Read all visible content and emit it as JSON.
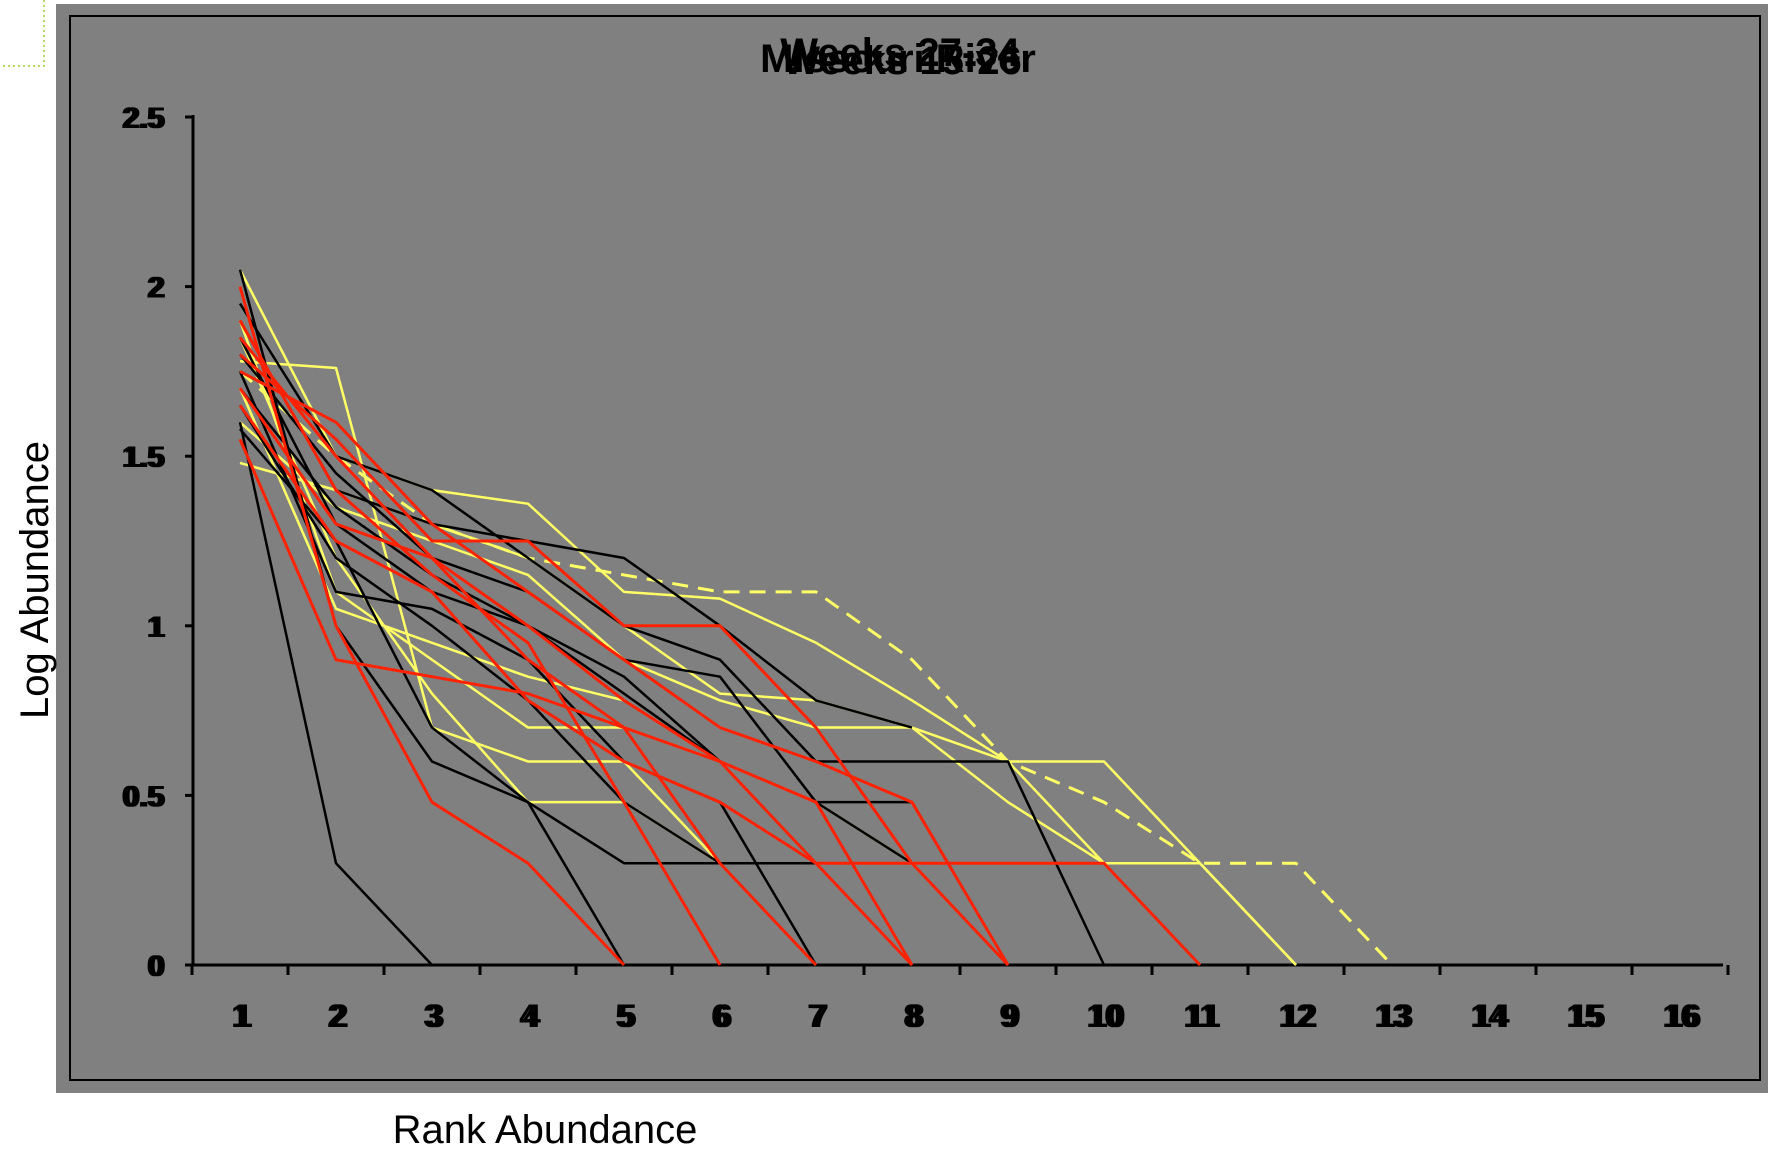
{
  "chart_data": {
    "type": "line",
    "title": "Weeks 27-34",
    "title_overlapping": [
      "Weeks 15-26",
      "Missouri River"
    ],
    "xlabel": "Rank Abundance",
    "ylabel": "Log Abundance",
    "x_ticks": [
      "1",
      "2",
      "3",
      "4",
      "5",
      "6",
      "7",
      "8",
      "9",
      "10",
      "11",
      "12",
      "13",
      "14",
      "15",
      "16"
    ],
    "y_ticks": [
      "0",
      "0.5",
      "1",
      "1.5",
      "2",
      "2.5"
    ],
    "ylim": [
      0,
      2.5
    ],
    "xlim": [
      1,
      16
    ],
    "grid": false,
    "legend": "none",
    "background_color": "#808080",
    "series": [
      {
        "color": "#000000",
        "values": [
          1.6,
          0.3,
          0
        ]
      },
      {
        "color": "#000000",
        "values": [
          2.05,
          1.0,
          0.6,
          0.48,
          0.3,
          0.3,
          0.3,
          0.3,
          0.3,
          0.3,
          0
        ]
      },
      {
        "color": "#000000",
        "values": [
          1.95,
          1.5,
          1.4,
          1.2,
          1.0,
          0.9,
          0.6,
          0.6,
          0.6,
          0
        ]
      },
      {
        "color": "#000000",
        "values": [
          1.85,
          1.3,
          1.1,
          1.0,
          0.85,
          0.6,
          0.48,
          0.48,
          0
        ]
      },
      {
        "color": "#000000",
        "values": [
          1.75,
          1.1,
          1.05,
          0.9,
          0.6,
          0.48,
          0
        ]
      },
      {
        "color": "#000000",
        "values": [
          1.9,
          1.4,
          1.3,
          1.25,
          1.2,
          1.0,
          0.78,
          0.7
        ]
      },
      {
        "color": "#000000",
        "values": [
          1.7,
          1.35,
          1.15,
          1.0,
          0.8,
          0.6,
          0.3,
          0
        ]
      },
      {
        "color": "#000000",
        "values": [
          1.58,
          1.25,
          0.7,
          0.48,
          0
        ]
      },
      {
        "color": "#000000",
        "values": [
          1.8,
          1.45,
          1.2,
          1.1,
          0.9,
          0.85,
          0.48,
          0.3,
          0
        ]
      },
      {
        "color": "#000000",
        "values": [
          1.65,
          1.2,
          1.0,
          0.78,
          0.48,
          0.3,
          0
        ]
      },
      {
        "color": "#ffff66",
        "values": [
          1.78,
          1.76,
          0.7,
          0.6,
          0.6,
          0.3,
          0
        ]
      },
      {
        "color": "#ffff66",
        "values": [
          2.05,
          1.5,
          1.4,
          1.36,
          1.1,
          1.08,
          0.95,
          0.78,
          0.6,
          0.6,
          0.3,
          0
        ]
      },
      {
        "color": "#ffff66",
        "values": [
          1.48,
          1.4,
          1.3,
          1.2,
          1.0,
          0.8,
          0.78,
          0.7,
          0.6,
          0.3,
          0.3,
          0
        ]
      },
      {
        "color": "#ffff66",
        "values": [
          1.7,
          1.05,
          0.95,
          0.85,
          0.78,
          0.6,
          0.48,
          0.3,
          0
        ]
      },
      {
        "color": "#ffff66",
        "values": [
          1.9,
          1.1,
          0.9,
          0.7,
          0.7,
          0.6,
          0.3,
          0
        ]
      },
      {
        "color": "#ffff66",
        "values": [
          1.6,
          1.35,
          1.25,
          1.15,
          0.9,
          0.78,
          0.7,
          0.7,
          0.48,
          0.3,
          0
        ]
      },
      {
        "color": "#ffff66",
        "values": [
          1.85,
          1.2,
          0.8,
          0.48,
          0.48,
          0.3,
          0
        ]
      },
      {
        "color": "#ffff66",
        "dashed": true,
        "values": [
          1.75,
          1.5,
          1.3,
          1.2,
          1.15,
          1.1,
          1.1,
          0.9,
          0.6,
          0.48,
          0.3,
          0.3,
          0
        ]
      },
      {
        "color": "#ff2200",
        "values": [
          2.0,
          1.0,
          0.48,
          0.3,
          0
        ]
      },
      {
        "color": "#ff2200",
        "values": [
          1.8,
          1.55,
          1.25,
          1.25,
          1.0,
          1.0,
          0.7,
          0.3,
          0.3,
          0.3,
          0
        ]
      },
      {
        "color": "#ff2200",
        "values": [
          1.7,
          1.3,
          1.2,
          1.0,
          0.78,
          0.6,
          0.48,
          0
        ]
      },
      {
        "color": "#ff2200",
        "values": [
          1.55,
          0.9,
          0.85,
          0.8,
          0.7,
          0.6,
          0.3,
          0
        ]
      },
      {
        "color": "#ff2200",
        "values": [
          1.75,
          1.6,
          1.3,
          1.1,
          0.9,
          0.7,
          0.6,
          0.48,
          0
        ]
      },
      {
        "color": "#ff2200",
        "values": [
          1.9,
          1.4,
          1.15,
          0.95,
          0.48,
          0
        ]
      },
      {
        "color": "#ff2200",
        "values": [
          1.65,
          1.25,
          1.1,
          0.78,
          0.6,
          0.48,
          0.3,
          0.3,
          0
        ]
      },
      {
        "color": "#ff2200",
        "values": [
          1.85,
          1.5,
          1.2,
          0.9,
          0.7,
          0.3,
          0
        ]
      }
    ]
  }
}
